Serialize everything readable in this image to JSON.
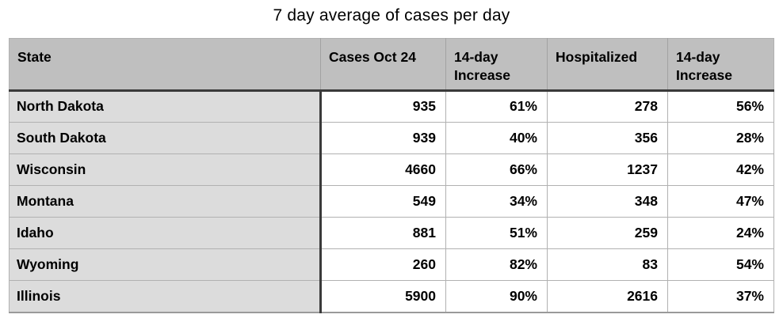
{
  "title": "7 day average of cases per day",
  "chart_data": {
    "type": "table",
    "title": "7 day average of cases per day",
    "columns": [
      "State",
      "Cases Oct 24",
      "14-day Increase",
      "Hospitalized",
      "14-day Increase"
    ],
    "rows": [
      [
        "North Dakota",
        935,
        "61%",
        278,
        "56%"
      ],
      [
        "South Dakota",
        939,
        "40%",
        356,
        "28%"
      ],
      [
        "Wisconsin",
        4660,
        "66%",
        1237,
        "42%"
      ],
      [
        "Montana",
        549,
        "34%",
        348,
        "47%"
      ],
      [
        "Idaho",
        881,
        "51%",
        259,
        "24%"
      ],
      [
        "Wyoming",
        260,
        "82%",
        83,
        "54%"
      ],
      [
        "Illinois",
        5900,
        "90%",
        2616,
        "37%"
      ]
    ]
  },
  "colors": {
    "header_bg": "#bfbfbf",
    "state_column_bg": "#dcdcdc",
    "data_cell_bg": "#ffffff",
    "grid_line": "#b1b1b1",
    "dark_rule": "#3a3a3a",
    "text": "#000000"
  }
}
